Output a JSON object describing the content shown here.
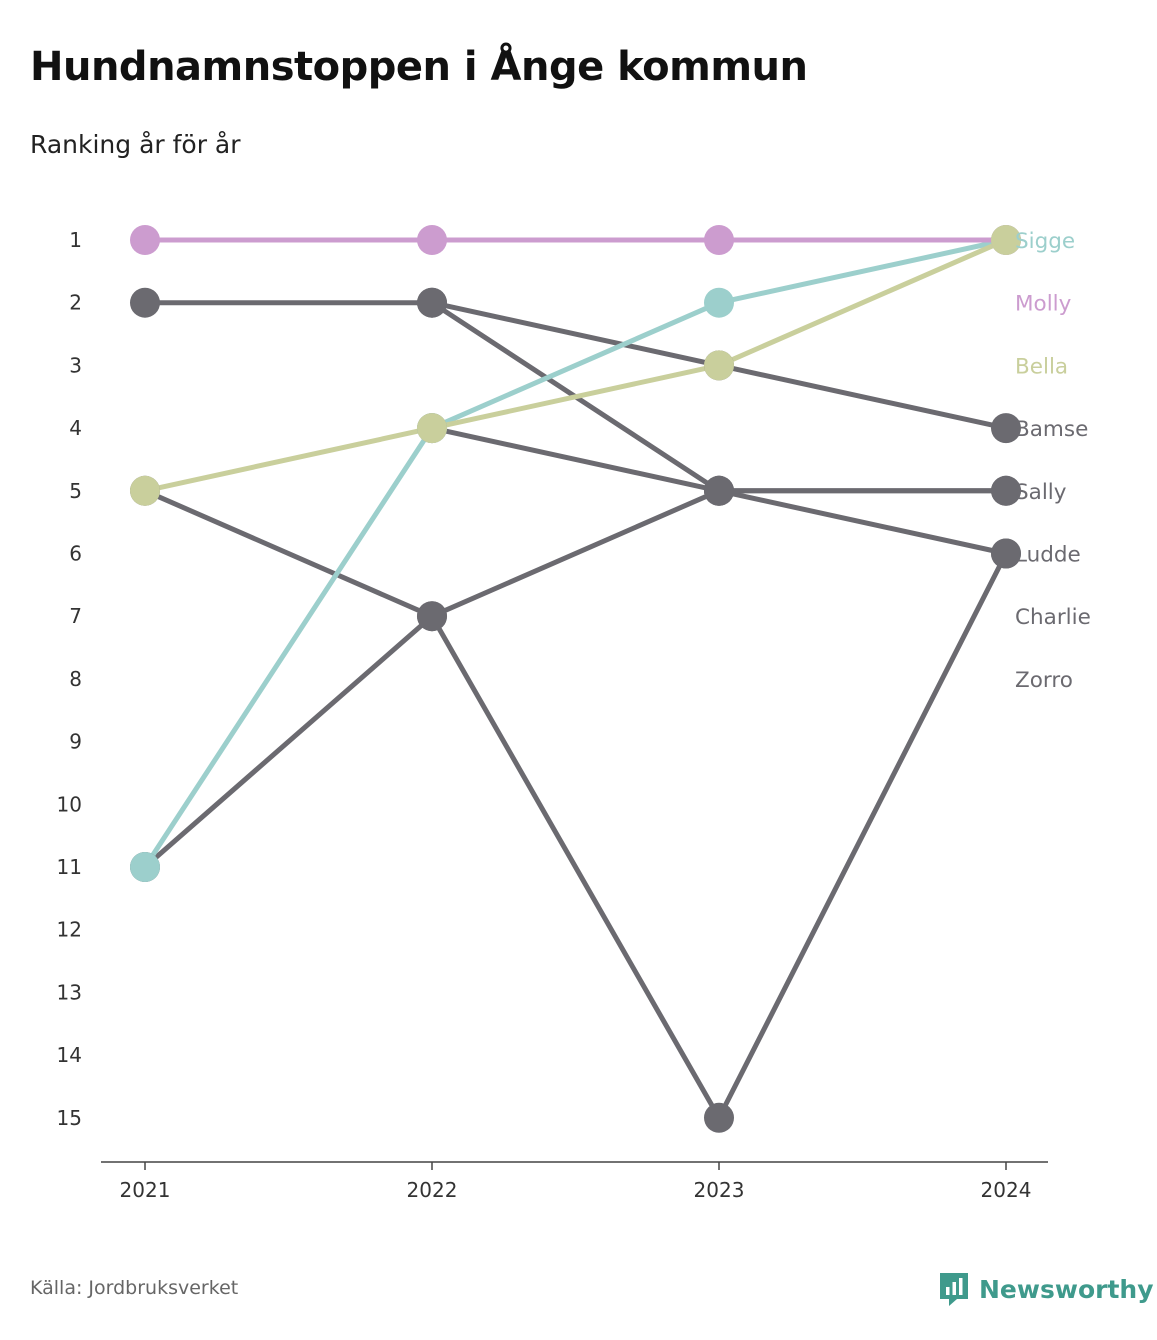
{
  "header": {
    "title": "Hundnamnstoppen i Ånge kommun",
    "subtitle": "Ranking år för år"
  },
  "footer": {
    "source": "Källa: Jordbruksverket",
    "brand": "Newsworthy"
  },
  "colors": {
    "Sigge": "#9ccfcc",
    "Molly": "#cc9ccf",
    "Bella": "#c9cf9c",
    "other": "#6b6a70",
    "axis": "#444444",
    "brand": "#3f9a8c"
  },
  "chart_data": {
    "type": "line",
    "x": [
      "2021",
      "2022",
      "2023",
      "2024"
    ],
    "y_ticks": [
      1,
      2,
      3,
      4,
      5,
      6,
      7,
      8,
      9,
      10,
      11,
      12,
      13,
      14,
      15
    ],
    "ylim": [
      15,
      1
    ],
    "y_inverted": true,
    "grid": false,
    "series": [
      {
        "name": "Sigge",
        "values": [
          11,
          4,
          2,
          1
        ]
      },
      {
        "name": "Molly",
        "values": [
          1,
          1,
          1,
          1
        ]
      },
      {
        "name": "Bella",
        "values": [
          5,
          4,
          3,
          1
        ]
      },
      {
        "name": "Bamse",
        "values": [
          2,
          2,
          3,
          4
        ]
      },
      {
        "name": "Sally",
        "values": [
          5,
          7,
          5,
          5
        ]
      },
      {
        "name": "Ludde",
        "values": [
          11,
          7,
          15,
          6
        ]
      },
      {
        "name": "Charlie",
        "values": [
          null,
          4,
          5,
          6
        ]
      },
      {
        "name": "Zorro",
        "values": [
          null,
          2,
          5,
          5
        ]
      }
    ],
    "end_labels": [
      "Sigge",
      "Molly",
      "Bella",
      "Bamse",
      "Sally",
      "Ludde",
      "Charlie",
      "Zorro"
    ]
  }
}
